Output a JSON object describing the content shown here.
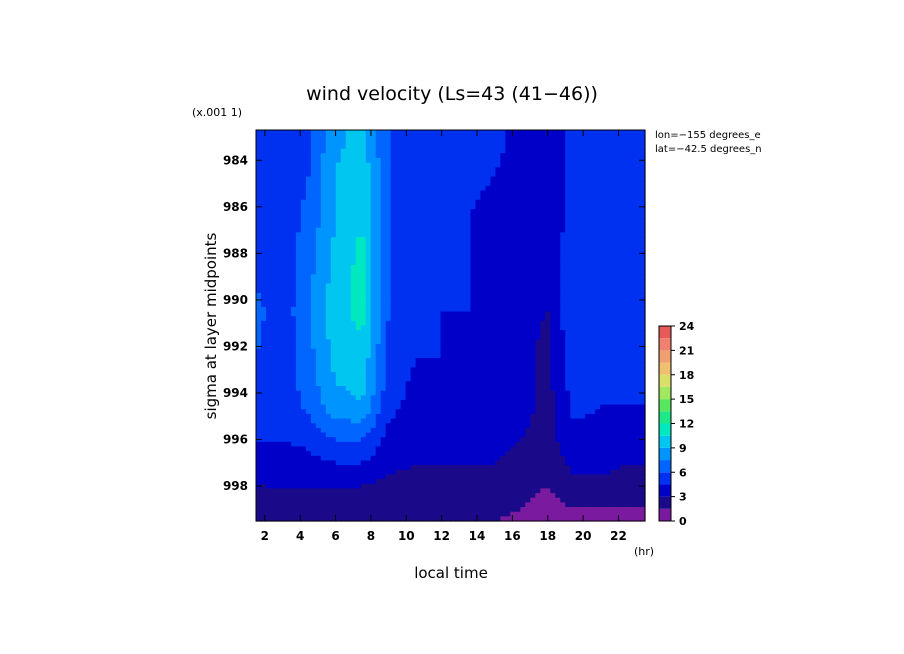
{
  "chart_data": {
    "type": "heatmap",
    "title": "wind velocity (Ls=43 (41−46))",
    "xlabel": "local time",
    "ylabel": "sigma at layer midpoints",
    "x_unit": "(hr)",
    "y_scale_note": "(x.001 1)",
    "annotations": [
      "lon=−155 degrees_e",
      "lat=−42.5 degrees_n"
    ],
    "xlim": [
      1.5,
      23.5
    ],
    "ylim": [
      0.9827,
      0.9995
    ],
    "y_reversed": true,
    "x_ticks": [
      "2",
      "4",
      "6",
      "8",
      "10",
      "12",
      "14",
      "16",
      "18",
      "20",
      "22"
    ],
    "x_tick_values": [
      2,
      4,
      6,
      8,
      10,
      12,
      14,
      16,
      18,
      20,
      22
    ],
    "y_ticks": [
      "984",
      "986",
      "988",
      "990",
      "992",
      "994",
      "996",
      "998"
    ],
    "y_tick_values": [
      0.984,
      0.986,
      0.988,
      0.99,
      0.992,
      0.994,
      0.996,
      0.998
    ],
    "colorbar": {
      "levels": [
        0,
        1.5,
        3,
        4.5,
        6,
        7.5,
        9,
        10.5,
        12,
        13.5,
        15,
        16.5,
        18,
        19.5,
        21,
        22.5,
        24
      ],
      "tick_labels": [
        "0",
        "3",
        "6",
        "9",
        "12",
        "15",
        "18",
        "21",
        "24"
      ],
      "tick_values": [
        0,
        3,
        6,
        9,
        12,
        15,
        18,
        21,
        24
      ],
      "colors": [
        "#7a1a9e",
        "#1a0a8a",
        "#0000c8",
        "#0030f0",
        "#0066ff",
        "#0094ff",
        "#00c6f0",
        "#00e8c0",
        "#1fe888",
        "#58e860",
        "#a0e860",
        "#d8e06a",
        "#f0c070",
        "#f0a070",
        "#f08070",
        "#e85a5a",
        "#d04040"
      ]
    },
    "x": [
      1.5,
      3,
      4.5,
      6,
      7.5,
      9,
      10.5,
      12,
      13.5,
      15,
      16.5,
      18,
      19.5,
      21,
      22.5
    ],
    "y": [
      0.9827,
      0.9845,
      0.9865,
      0.9885,
      0.9905,
      0.9925,
      0.9945,
      0.996,
      0.997,
      0.998,
      0.999,
      0.9995
    ],
    "z": [
      [
        5.0,
        5.0,
        6.0,
        8.5,
        9.5,
        6.0,
        5.0,
        5.0,
        5.5,
        5.0,
        4.0,
        3.0,
        5.5,
        5.0,
        5.0
      ],
      [
        5.0,
        4.5,
        6.0,
        9.0,
        10.0,
        6.0,
        5.0,
        4.5,
        5.0,
        4.5,
        4.0,
        3.0,
        5.5,
        5.0,
        5.0
      ],
      [
        5.0,
        5.0,
        6.5,
        9.0,
        10.5,
        6.0,
        5.0,
        4.5,
        4.5,
        4.0,
        3.5,
        3.0,
        5.5,
        5.0,
        4.5
      ],
      [
        5.5,
        5.0,
        7.0,
        9.5,
        11.0,
        6.0,
        5.0,
        4.5,
        4.5,
        4.0,
        3.5,
        3.0,
        6.0,
        5.0,
        4.5
      ],
      [
        6.5,
        5.0,
        7.5,
        10.0,
        11.0,
        6.0,
        5.0,
        4.5,
        4.5,
        4.5,
        3.5,
        3.0,
        6.0,
        5.0,
        4.5
      ],
      [
        6.0,
        5.0,
        7.0,
        9.5,
        10.0,
        5.5,
        4.5,
        4.5,
        4.0,
        4.0,
        3.5,
        2.5,
        5.5,
        5.0,
        4.5
      ],
      [
        5.5,
        5.0,
        6.5,
        8.5,
        9.0,
        5.0,
        4.0,
        4.0,
        3.5,
        3.5,
        3.5,
        2.5,
        5.0,
        4.5,
        4.5
      ],
      [
        4.5,
        4.5,
        5.0,
        6.0,
        6.0,
        4.0,
        3.5,
        3.5,
        3.5,
        3.5,
        3.0,
        2.5,
        4.0,
        4.0,
        3.5
      ],
      [
        3.5,
        3.5,
        4.0,
        4.5,
        4.5,
        3.5,
        3.0,
        3.0,
        3.0,
        3.0,
        2.5,
        2.0,
        3.5,
        3.5,
        3.0
      ],
      [
        3.0,
        3.0,
        3.0,
        3.0,
        3.0,
        2.5,
        2.5,
        2.5,
        2.5,
        2.5,
        2.0,
        1.5,
        2.5,
        2.5,
        2.5
      ],
      [
        2.0,
        2.0,
        2.0,
        2.0,
        2.0,
        2.0,
        2.0,
        2.0,
        2.0,
        2.0,
        1.5,
        1.0,
        1.5,
        1.5,
        1.5
      ],
      [
        1.5,
        1.5,
        1.5,
        1.5,
        1.5,
        1.5,
        1.5,
        1.5,
        1.5,
        1.5,
        1.0,
        0.5,
        1.0,
        1.0,
        1.0
      ]
    ]
  }
}
